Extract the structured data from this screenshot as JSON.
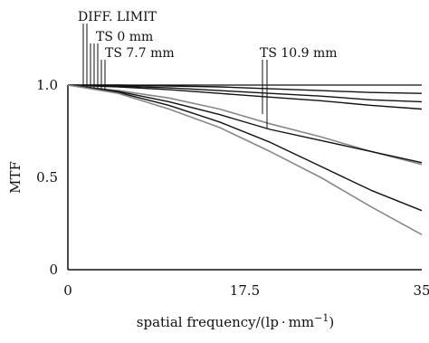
{
  "chart_data": {
    "type": "line",
    "xlabel": "spatial frequency/(lp · mm",
    "xlabel_sup": "−1",
    "xlabel_close": ")",
    "ylabel": "MTF",
    "xlim": [
      0,
      35
    ],
    "ylim": [
      0,
      1.0
    ],
    "xticks": [
      "0",
      "17.5",
      "35"
    ],
    "yticks": [
      "0",
      "0.5",
      "1.0"
    ],
    "grid": false,
    "annotations": [
      {
        "id": "diff-limit",
        "text": "DIFF. LIMIT"
      },
      {
        "id": "ts-0",
        "text": "TS 0 mm"
      },
      {
        "id": "ts-7-7",
        "text": "TS 7.7 mm"
      },
      {
        "id": "ts-10-9",
        "text": "TS 10.9 mm"
      }
    ],
    "series": [
      {
        "id": "diff-limit",
        "color": "#111111",
        "x": [
          0,
          5,
          10,
          15,
          20,
          25,
          30,
          35
        ],
        "y": [
          1.0,
          1.0,
          0.995,
          0.99,
          0.98,
          0.97,
          0.96,
          0.955
        ]
      },
      {
        "id": "ts-0-s",
        "color": "#111111",
        "x": [
          0,
          5,
          10,
          15,
          20,
          25,
          30,
          35
        ],
        "y": [
          1.0,
          0.995,
          0.985,
          0.97,
          0.955,
          0.94,
          0.92,
          0.91
        ]
      },
      {
        "id": "ts-0-t",
        "color": "#111111",
        "x": [
          0,
          5,
          10,
          15,
          20,
          25,
          30,
          35
        ],
        "y": [
          1.0,
          0.99,
          0.975,
          0.955,
          0.935,
          0.915,
          0.89,
          0.87
        ]
      },
      {
        "id": "ts-7-7-s",
        "color": "#888888",
        "x": [
          0,
          5,
          10,
          15,
          20,
          25,
          30,
          35
        ],
        "y": [
          1.0,
          0.97,
          0.93,
          0.87,
          0.79,
          0.72,
          0.64,
          0.57
        ]
      },
      {
        "id": "ts-7-7-t",
        "color": "#111111",
        "x": [
          0,
          5,
          10,
          15,
          20,
          25,
          30,
          35
        ],
        "y": [
          1.0,
          0.965,
          0.91,
          0.84,
          0.76,
          0.7,
          0.64,
          0.58
        ]
      },
      {
        "id": "ts-10-9-s",
        "color": "#111111",
        "x": [
          0,
          5,
          10,
          15,
          20,
          25,
          30,
          35
        ],
        "y": [
          1.0,
          0.96,
          0.89,
          0.8,
          0.69,
          0.56,
          0.43,
          0.32
        ]
      },
      {
        "id": "ts-10-9-t",
        "color": "#888888",
        "x": [
          0,
          5,
          10,
          15,
          20,
          25,
          30,
          35
        ],
        "y": [
          1.0,
          0.955,
          0.87,
          0.77,
          0.64,
          0.5,
          0.34,
          0.19
        ]
      }
    ]
  }
}
